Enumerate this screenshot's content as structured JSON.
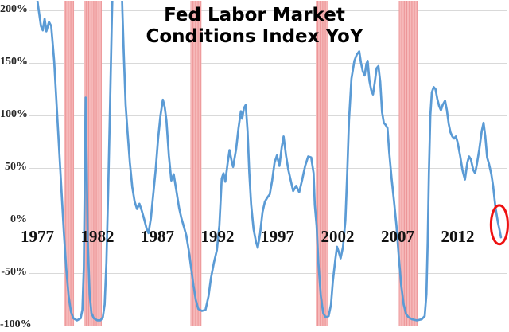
{
  "title": {
    "line1": "Fed Labor Market",
    "line2": "Conditions Index YoY"
  },
  "colors": {
    "line": "#5B9BD5",
    "gridline": "#D9D9D9",
    "band_fill": "#F6B9BA",
    "band_stripe": "#EC9496",
    "annotation": "#EE1111",
    "title_text": "#000000",
    "axis_text": "#262626"
  },
  "chart_data": {
    "type": "line",
    "title": "Fed Labor Market Conditions Index YoY",
    "xlabel": "",
    "ylabel": "",
    "grid": true,
    "x_axis": {
      "ticks": [
        1977,
        1982,
        1987,
        1992,
        1997,
        2002,
        2007,
        2012
      ],
      "range": [
        1976.3,
        2016.2
      ]
    },
    "y_axis": {
      "tick_labels": [
        "200%",
        "150%",
        "100%",
        "50%",
        "0%",
        "-50%",
        "-100%"
      ],
      "tick_values": [
        200,
        150,
        100,
        50,
        0,
        -50,
        -100
      ],
      "range": [
        -100,
        200
      ],
      "unit": "%"
    },
    "recession_bands": [
      {
        "start": 1979.25,
        "end": 1980.05
      },
      {
        "start": 1980.9,
        "end": 1982.36
      },
      {
        "start": 1989.75,
        "end": 1990.67
      },
      {
        "start": 2000.18,
        "end": 2001.24
      },
      {
        "start": 2007.1,
        "end": 2008.66
      }
    ],
    "annotation_circle": {
      "center_year": 2015.47,
      "center_value": -4,
      "radius_years": 0.7,
      "radius_value": 18.5
    },
    "series": [
      {
        "name": "Fed Labor Market Conditions Index YoY",
        "points": [
          [
            1976.78,
            230
          ],
          [
            1977.05,
            205
          ],
          [
            1977.3,
            185
          ],
          [
            1977.45,
            181
          ],
          [
            1977.6,
            192
          ],
          [
            1977.75,
            180
          ],
          [
            1977.97,
            189
          ],
          [
            1978.15,
            185
          ],
          [
            1978.4,
            152
          ],
          [
            1978.6,
            110
          ],
          [
            1978.8,
            70
          ],
          [
            1979.0,
            30
          ],
          [
            1979.2,
            -10
          ],
          [
            1979.4,
            -45
          ],
          [
            1979.6,
            -72
          ],
          [
            1979.8,
            -87
          ],
          [
            1980.0,
            -93
          ],
          [
            1980.3,
            -95
          ],
          [
            1980.6,
            -93
          ],
          [
            1980.75,
            -85
          ],
          [
            1980.87,
            -45
          ],
          [
            1980.95,
            40
          ],
          [
            1981.02,
            117
          ],
          [
            1981.1,
            60
          ],
          [
            1981.2,
            -20
          ],
          [
            1981.35,
            -70
          ],
          [
            1981.5,
            -88
          ],
          [
            1981.7,
            -93
          ],
          [
            1982.0,
            -95
          ],
          [
            1982.25,
            -95
          ],
          [
            1982.45,
            -92
          ],
          [
            1982.6,
            -80
          ],
          [
            1982.75,
            -40
          ],
          [
            1982.9,
            30
          ],
          [
            1983.05,
            110
          ],
          [
            1983.2,
            190
          ],
          [
            1983.3,
            235
          ],
          [
            1984.0,
            235
          ],
          [
            1984.08,
            200
          ],
          [
            1984.2,
            158
          ],
          [
            1984.35,
            110
          ],
          [
            1984.5,
            85
          ],
          [
            1984.7,
            55
          ],
          [
            1984.9,
            32
          ],
          [
            1985.1,
            18
          ],
          [
            1985.3,
            11
          ],
          [
            1985.5,
            16
          ],
          [
            1985.7,
            9
          ],
          [
            1985.9,
            1
          ],
          [
            1986.1,
            -8
          ],
          [
            1986.25,
            -12
          ],
          [
            1986.45,
            2
          ],
          [
            1986.65,
            25
          ],
          [
            1986.85,
            48
          ],
          [
            1987.05,
            78
          ],
          [
            1987.25,
            100
          ],
          [
            1987.45,
            115
          ],
          [
            1987.6,
            108
          ],
          [
            1987.75,
            95
          ],
          [
            1987.95,
            62
          ],
          [
            1988.15,
            38
          ],
          [
            1988.35,
            44
          ],
          [
            1988.55,
            30
          ],
          [
            1988.8,
            12
          ],
          [
            1989.0,
            2
          ],
          [
            1989.2,
            -6
          ],
          [
            1989.4,
            -14
          ],
          [
            1989.6,
            -28
          ],
          [
            1989.8,
            -45
          ],
          [
            1990.0,
            -62
          ],
          [
            1990.2,
            -76
          ],
          [
            1990.4,
            -84
          ],
          [
            1990.7,
            -86
          ],
          [
            1991.0,
            -85
          ],
          [
            1991.25,
            -72
          ],
          [
            1991.45,
            -55
          ],
          [
            1991.7,
            -40
          ],
          [
            1991.95,
            -28
          ],
          [
            1992.15,
            -5
          ],
          [
            1992.35,
            40
          ],
          [
            1992.5,
            45
          ],
          [
            1992.65,
            37
          ],
          [
            1992.85,
            55
          ],
          [
            1993.0,
            67
          ],
          [
            1993.15,
            58
          ],
          [
            1993.3,
            51
          ],
          [
            1993.55,
            68
          ],
          [
            1993.75,
            88
          ],
          [
            1993.95,
            104
          ],
          [
            1994.05,
            97
          ],
          [
            1994.2,
            107
          ],
          [
            1994.35,
            110
          ],
          [
            1994.5,
            85
          ],
          [
            1994.65,
            45
          ],
          [
            1994.8,
            15
          ],
          [
            1995.0,
            -8
          ],
          [
            1995.2,
            -20
          ],
          [
            1995.35,
            -26
          ],
          [
            1995.55,
            -12
          ],
          [
            1995.75,
            8
          ],
          [
            1995.95,
            18
          ],
          [
            1996.15,
            22
          ],
          [
            1996.35,
            25
          ],
          [
            1996.55,
            38
          ],
          [
            1996.75,
            55
          ],
          [
            1996.95,
            62
          ],
          [
            1997.15,
            52
          ],
          [
            1997.35,
            70
          ],
          [
            1997.5,
            80
          ],
          [
            1997.7,
            62
          ],
          [
            1997.9,
            48
          ],
          [
            1998.1,
            38
          ],
          [
            1998.3,
            28
          ],
          [
            1998.55,
            33
          ],
          [
            1998.8,
            27
          ],
          [
            1999.05,
            39
          ],
          [
            1999.3,
            52
          ],
          [
            1999.55,
            61
          ],
          [
            1999.8,
            60
          ],
          [
            2000.0,
            45
          ],
          [
            2000.1,
            15
          ],
          [
            2000.25,
            -5
          ],
          [
            2000.4,
            -40
          ],
          [
            2000.6,
            -72
          ],
          [
            2000.8,
            -88
          ],
          [
            2001.0,
            -92
          ],
          [
            2001.25,
            -91
          ],
          [
            2001.45,
            -80
          ],
          [
            2001.6,
            -58
          ],
          [
            2001.8,
            -38
          ],
          [
            2001.95,
            -25
          ],
          [
            2002.1,
            -30
          ],
          [
            2002.25,
            -36
          ],
          [
            2002.45,
            -25
          ],
          [
            2002.65,
            0
          ],
          [
            2002.8,
            45
          ],
          [
            2002.95,
            95
          ],
          [
            2003.15,
            135
          ],
          [
            2003.4,
            152
          ],
          [
            2003.6,
            158
          ],
          [
            2003.8,
            161
          ],
          [
            2003.95,
            150
          ],
          [
            2004.1,
            142
          ],
          [
            2004.25,
            138
          ],
          [
            2004.4,
            149
          ],
          [
            2004.5,
            152
          ],
          [
            2004.65,
            133
          ],
          [
            2004.8,
            124
          ],
          [
            2004.95,
            120
          ],
          [
            2005.1,
            132
          ],
          [
            2005.25,
            145
          ],
          [
            2005.4,
            147
          ],
          [
            2005.55,
            132
          ],
          [
            2005.7,
            103
          ],
          [
            2005.85,
            93
          ],
          [
            2006.0,
            91
          ],
          [
            2006.15,
            88
          ],
          [
            2006.3,
            65
          ],
          [
            2006.5,
            40
          ],
          [
            2006.7,
            18
          ],
          [
            2006.9,
            -5
          ],
          [
            2007.1,
            -35
          ],
          [
            2007.3,
            -62
          ],
          [
            2007.5,
            -80
          ],
          [
            2007.7,
            -89
          ],
          [
            2007.9,
            -92
          ],
          [
            2008.2,
            -94
          ],
          [
            2008.6,
            -95
          ],
          [
            2009.0,
            -94
          ],
          [
            2009.25,
            -91
          ],
          [
            2009.4,
            -70
          ],
          [
            2009.5,
            -20
          ],
          [
            2009.6,
            45
          ],
          [
            2009.72,
            100
          ],
          [
            2009.85,
            122
          ],
          [
            2010.0,
            127
          ],
          [
            2010.15,
            125
          ],
          [
            2010.3,
            116
          ],
          [
            2010.45,
            109
          ],
          [
            2010.6,
            105
          ],
          [
            2010.75,
            110
          ],
          [
            2010.95,
            114
          ],
          [
            2011.1,
            105
          ],
          [
            2011.25,
            92
          ],
          [
            2011.4,
            84
          ],
          [
            2011.55,
            80
          ],
          [
            2011.7,
            78
          ],
          [
            2011.85,
            80
          ],
          [
            2012.0,
            74
          ],
          [
            2012.2,
            62
          ],
          [
            2012.4,
            48
          ],
          [
            2012.6,
            39
          ],
          [
            2012.8,
            55
          ],
          [
            2012.95,
            61
          ],
          [
            2013.1,
            58
          ],
          [
            2013.3,
            48
          ],
          [
            2013.45,
            45
          ],
          [
            2013.6,
            54
          ],
          [
            2013.8,
            68
          ],
          [
            2014.0,
            85
          ],
          [
            2014.15,
            93
          ],
          [
            2014.3,
            80
          ],
          [
            2014.45,
            60
          ],
          [
            2014.6,
            54
          ],
          [
            2014.8,
            44
          ],
          [
            2014.95,
            33
          ],
          [
            2015.05,
            22
          ],
          [
            2015.15,
            12
          ],
          [
            2015.25,
            5
          ],
          [
            2015.35,
            -2
          ],
          [
            2015.5,
            -10
          ],
          [
            2015.6,
            -16
          ]
        ]
      }
    ]
  }
}
